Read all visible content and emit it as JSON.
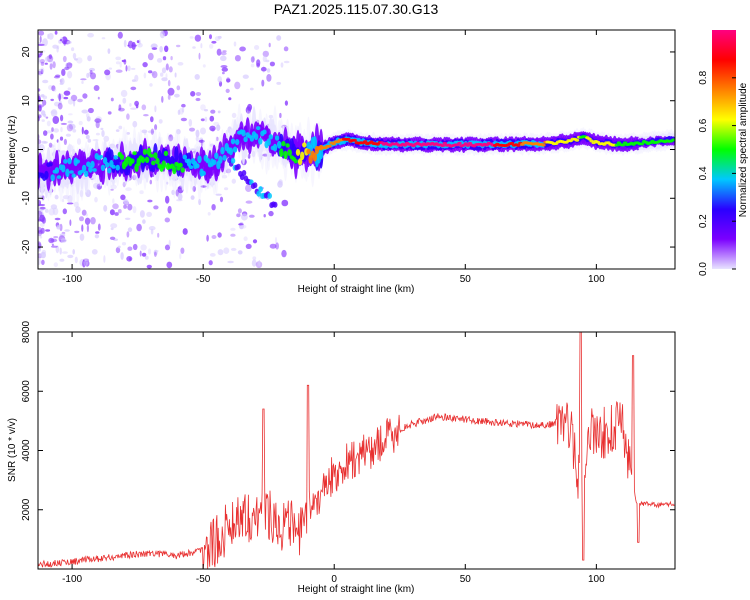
{
  "figure": {
    "title": "PAZ1.2025.115.07.30.G13"
  },
  "chart_data": [
    {
      "type": "heatmap",
      "xlabel": "Height of straight line (km)",
      "ylabel": "Frequency (Hz)",
      "xlim": [
        -113,
        130
      ],
      "ylim": [
        -24.5,
        24.5
      ],
      "x_ticks": [
        -100,
        -50,
        0,
        50,
        100
      ],
      "y_ticks": [
        -20,
        -10,
        0,
        10,
        20
      ],
      "colorbar": {
        "label": "Normalized spectral amplitude",
        "range": [
          0,
          1
        ],
        "ticks": [
          "0.0",
          "0.2",
          "0.4",
          "0.6",
          "0.8"
        ]
      },
      "ridge": {
        "x": [
          -110,
          -100,
          -90,
          -80,
          -70,
          -60,
          -50,
          -45,
          -40,
          -35,
          -30,
          -25,
          -20,
          -15,
          -10,
          -5,
          0,
          5,
          10,
          20,
          40,
          60,
          80,
          90,
          95,
          100,
          110,
          120,
          130
        ],
        "y": [
          -4.5,
          -4,
          -3,
          -2.5,
          -2,
          -2.5,
          -3.5,
          -3,
          1,
          2.5,
          3,
          2,
          1,
          -1,
          -0.5,
          0,
          1.5,
          2,
          1.5,
          1,
          1,
          1,
          1.2,
          1.8,
          2.5,
          1.5,
          1,
          1.5,
          2
        ],
        "amplitude": [
          0.3,
          0.35,
          0.4,
          0.45,
          0.45,
          0.45,
          0.4,
          0.35,
          0.4,
          0.4,
          0.35,
          0.35,
          0.45,
          0.55,
          0.7,
          0.8,
          0.75,
          0.85,
          0.9,
          0.95,
          0.97,
          0.95,
          0.7,
          0.6,
          0.55,
          0.6,
          0.55,
          0.5,
          0.5
        ]
      },
      "secondary_ridge": {
        "x": [
          -40,
          -35,
          -30,
          -25,
          -22
        ],
        "y": [
          -2,
          -5,
          -8,
          -10,
          -12
        ]
      },
      "color_scale": [
        "#e8e4ff",
        "#7b00ff",
        "#2a00ff",
        "#00c8ff",
        "#00ff00",
        "#ffff00",
        "#ff8000",
        "#ff0000",
        "#ff0080"
      ]
    },
    {
      "type": "line",
      "xlabel": "Height of straight line (km)",
      "ylabel": "SNR (10 * v/v)",
      "xlim": [
        -113,
        130
      ],
      "ylim": [
        0,
        8000
      ],
      "x_ticks": [
        -100,
        -50,
        0,
        50,
        100
      ],
      "y_ticks": [
        2000,
        4000,
        6000,
        8000
      ],
      "color": "#e83030",
      "series": [
        {
          "x": [
            -113,
            -100,
            -90,
            -80,
            -70,
            -60,
            -50,
            -45,
            -40,
            -35,
            -30,
            -25,
            -20,
            -15,
            -12,
            -10,
            -5,
            0,
            5,
            10,
            15,
            20,
            25,
            30,
            40,
            50,
            60,
            70,
            80,
            85,
            88,
            90,
            93,
            95,
            97,
            100,
            105,
            110,
            113,
            115,
            117,
            120,
            125,
            130
          ],
          "y": [
            150,
            250,
            350,
            450,
            550,
            450,
            650,
            900,
            1500,
            1900,
            1700,
            1900,
            1500,
            1400,
            1200,
            1900,
            2600,
            3200,
            3600,
            3800,
            4100,
            4400,
            4700,
            4900,
            5150,
            5050,
            4950,
            4900,
            4850,
            4950,
            5100,
            4800,
            3200,
            2800,
            4600,
            4500,
            4700,
            4800,
            3500,
            2300,
            2200,
            2200,
            2150,
            2200
          ]
        }
      ],
      "peaks": [
        {
          "x": -27,
          "y": 5400
        },
        {
          "x": -10,
          "y": 6200
        },
        {
          "x": 94,
          "y": 8000
        },
        {
          "x": 95,
          "y": 300
        },
        {
          "x": 114,
          "y": 7200
        },
        {
          "x": 116,
          "y": 900
        }
      ]
    }
  ]
}
